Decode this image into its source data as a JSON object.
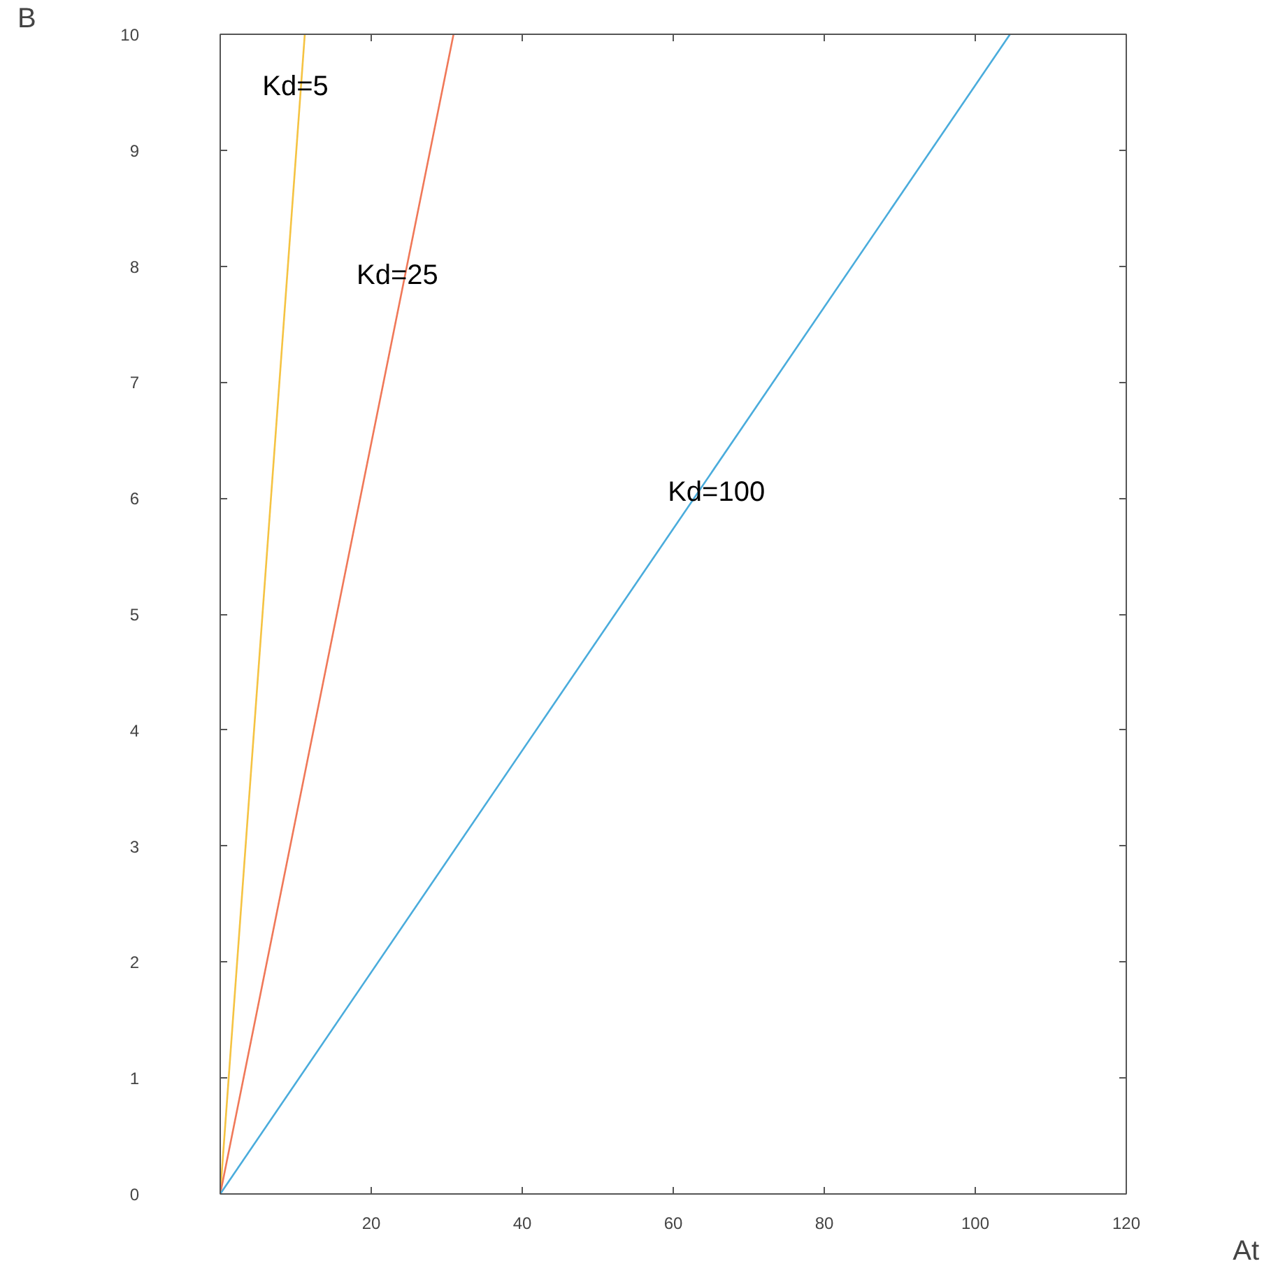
{
  "chart_data": {
    "type": "line",
    "xlabel": "At",
    "ylabel": "B",
    "xlim": [
      0,
      120
    ],
    "ylim": [
      0,
      10
    ],
    "xticks": [
      20,
      40,
      60,
      80,
      100,
      120
    ],
    "yticks": [
      0,
      1,
      2,
      3,
      4,
      5,
      6,
      7,
      8,
      9,
      10
    ],
    "grid": false,
    "marker": "none",
    "line_style": "solid",
    "series": [
      {
        "color": "#f5c342",
        "x": [
          0,
          11.2
        ],
        "values": [
          0,
          10
        ]
      },
      {
        "color": "#f07858",
        "x": [
          0,
          30.9
        ],
        "values": [
          0,
          10
        ]
      },
      {
        "color": "#4aacdc",
        "x": [
          0,
          104.6
        ],
        "values": [
          0,
          10
        ]
      }
    ],
    "annotations": [
      {
        "text": "Kd=5",
        "x": 10.7,
        "y": 9.55
      },
      {
        "text": "Kd=25",
        "x": 24.2,
        "y": 7.92
      },
      {
        "text": "Kd=100",
        "x": 63.3,
        "y": 6.05
      }
    ]
  }
}
